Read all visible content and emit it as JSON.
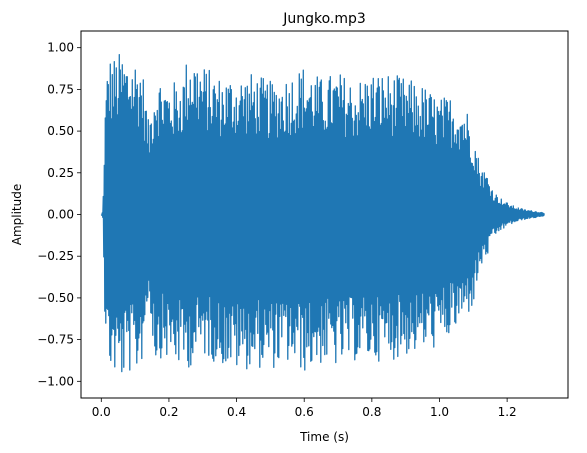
{
  "chart_data": {
    "type": "line",
    "title": "Jungko.mp3",
    "xlabel": "Time (s)",
    "ylabel": "Amplitude",
    "xlim": [
      -0.06,
      1.38
    ],
    "ylim": [
      -1.1,
      1.1
    ],
    "xticks": [
      0.0,
      0.2,
      0.4,
      0.6,
      0.8,
      1.0,
      1.2
    ],
    "xtick_labels": [
      "0.0",
      "0.2",
      "0.4",
      "0.6",
      "0.8",
      "1.0",
      "1.2"
    ],
    "yticks": [
      1.0,
      0.75,
      0.5,
      0.25,
      0.0,
      -0.25,
      -0.5,
      -0.75,
      -1.0
    ],
    "ytick_labels": [
      "1.00",
      "0.75",
      "0.50",
      "0.25",
      "0.00",
      "−0.25",
      "−0.50",
      "−0.75",
      "−1.00"
    ],
    "grid": false,
    "series": [
      {
        "color": "#1f77b4",
        "envelope": {
          "t": [
            0.0,
            0.005,
            0.01,
            0.02,
            0.04,
            0.06,
            0.08,
            0.1,
            0.12,
            0.14,
            0.16,
            0.18,
            0.2,
            0.24,
            0.26,
            0.3,
            0.35,
            0.4,
            0.45,
            0.5,
            0.55,
            0.6,
            0.65,
            0.7,
            0.75,
            0.8,
            0.85,
            0.9,
            0.95,
            1.0,
            1.04,
            1.08,
            1.1,
            1.12,
            1.14,
            1.16,
            1.18,
            1.2,
            1.22,
            1.25,
            1.28,
            1.31
          ],
          "max": [
            0.0,
            0.02,
            0.6,
            0.96,
            0.95,
            0.98,
            0.95,
            0.95,
            0.92,
            0.55,
            0.86,
            0.82,
            0.78,
            0.83,
            1.0,
            0.9,
            0.83,
            0.84,
            0.85,
            0.8,
            0.84,
            0.9,
            0.82,
            0.86,
            0.8,
            0.86,
            0.85,
            0.82,
            0.78,
            0.7,
            0.72,
            0.65,
            0.5,
            0.3,
            0.25,
            0.14,
            0.1,
            0.07,
            0.05,
            0.03,
            0.02,
            0.01
          ],
          "min": [
            0.0,
            -0.02,
            -0.6,
            -0.92,
            -0.97,
            -1.0,
            -0.95,
            -0.98,
            -0.88,
            -0.5,
            -0.9,
            -0.85,
            -0.88,
            -0.93,
            -0.92,
            -0.85,
            -0.9,
            -0.94,
            -0.92,
            -0.93,
            -0.9,
            -0.95,
            -0.9,
            -0.92,
            -0.88,
            -0.88,
            -0.88,
            -0.85,
            -0.82,
            -0.8,
            -0.72,
            -0.62,
            -0.55,
            -0.33,
            -0.26,
            -0.14,
            -0.1,
            -0.07,
            -0.05,
            -0.03,
            -0.02,
            -0.01
          ]
        }
      }
    ]
  }
}
